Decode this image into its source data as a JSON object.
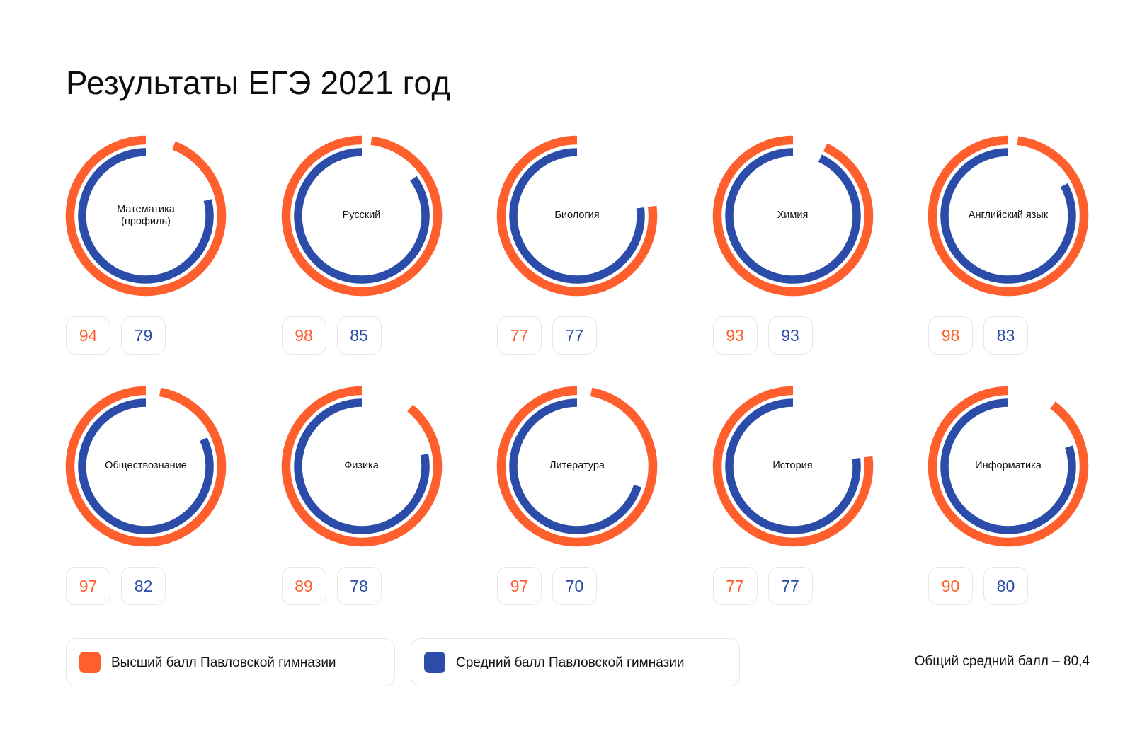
{
  "title": "Результаты ЕГЭ 2021 год",
  "chart_data": {
    "type": "bar",
    "orientation": "radial",
    "scale_max": 100,
    "categories": [
      "Математика\n(профиль)",
      "Русский",
      "Биология",
      "Химия",
      "Английский язык",
      "Обществознание",
      "Физика",
      "Литература",
      "История",
      "Информатика"
    ],
    "series": [
      {
        "name": "Высший балл Павловской гимназии",
        "color": "#FF5F2D",
        "values": [
          94,
          98,
          77,
          93,
          98,
          97,
          89,
          97,
          77,
          90
        ]
      },
      {
        "name": "Средний балл Павловской гимназии",
        "color": "#2B4CA8",
        "values": [
          79,
          85,
          77,
          93,
          83,
          82,
          78,
          70,
          77,
          80
        ]
      }
    ],
    "legend": "bottom"
  },
  "summary": "Общий средний балл – 80,4"
}
